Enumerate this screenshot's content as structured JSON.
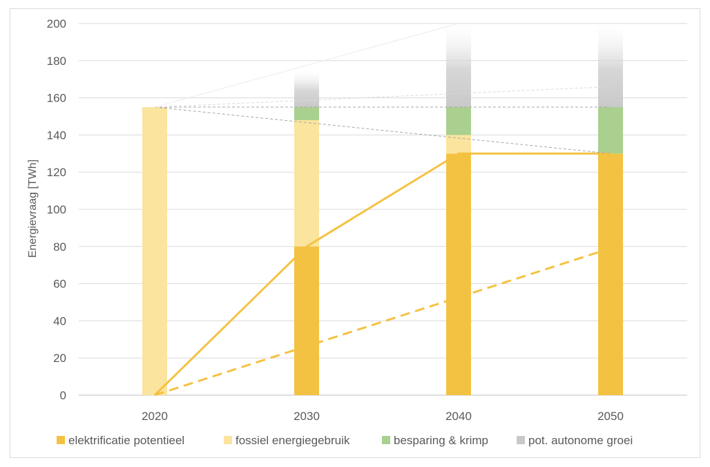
{
  "chart_data": {
    "type": "bar",
    "subtype": "stacked-bar-with-lines",
    "categories": [
      "2020",
      "2030",
      "2040",
      "2050"
    ],
    "ylabel": "Energievraag [TWh]",
    "xlabel": "",
    "ylim": [
      0,
      200
    ],
    "yticks": [
      0,
      20,
      40,
      60,
      80,
      100,
      120,
      140,
      160,
      180,
      200
    ],
    "grid": true,
    "legend_position": "bottom",
    "series": [
      {
        "name": "elektrificatie potentieel",
        "color": "#f4c242",
        "values": [
          0,
          80,
          130,
          130
        ]
      },
      {
        "name": "fossiel energiegebruik",
        "color": "#fbe49e",
        "values": [
          155,
          68,
          10,
          0
        ]
      },
      {
        "name": "besparing & krimp",
        "color": "#a9d08e",
        "values": [
          0,
          7,
          15,
          25
        ]
      },
      {
        "name": "pot. autonome groei",
        "color": "#c9c9c9",
        "values": [
          0,
          20,
          45,
          45
        ],
        "fade": "to-top"
      }
    ],
    "lines": [
      {
        "style": "solid",
        "color": "#f4c242",
        "points": [
          [
            0,
            0
          ],
          [
            1,
            80
          ],
          [
            2,
            130
          ],
          [
            3,
            130
          ]
        ]
      },
      {
        "style": "dashed",
        "color": "#f4c242",
        "points": [
          [
            0,
            0
          ],
          [
            3,
            79
          ]
        ]
      },
      {
        "style": "thin-dashed",
        "color": "#a6a6a6",
        "points": [
          [
            0,
            155
          ],
          [
            3,
            155
          ]
        ]
      },
      {
        "style": "thin-dashed",
        "color": "#a6a6a6",
        "points": [
          [
            0,
            155
          ],
          [
            3,
            130
          ]
        ]
      },
      {
        "style": "thin-dashed",
        "color": "#d9d9d9",
        "points": [
          [
            0,
            155
          ],
          [
            3,
            166
          ]
        ]
      },
      {
        "style": "thin-solid",
        "color": "#ebebeb",
        "points": [
          [
            0,
            155
          ],
          [
            2,
            200
          ]
        ]
      }
    ]
  }
}
